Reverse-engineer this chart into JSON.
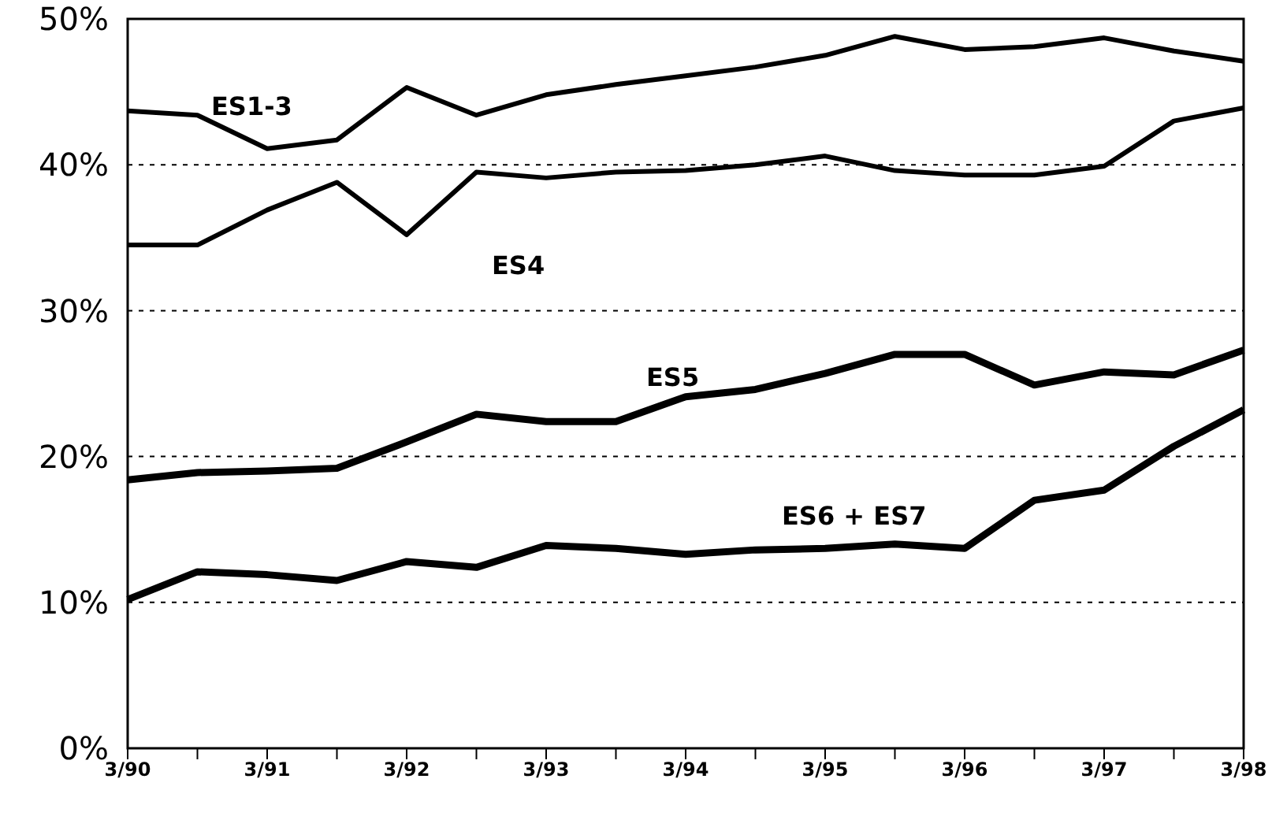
{
  "chart_data": {
    "type": "line",
    "categories": [
      "3/90",
      null,
      "3/91",
      null,
      "3/92",
      null,
      "3/93",
      null,
      "3/94",
      null,
      "3/95",
      null,
      "3/96",
      null,
      "3/97",
      null,
      "3/98"
    ],
    "series": [
      {
        "name": "ES1-3",
        "color": "#000000",
        "values": [
          43.7,
          43.4,
          41.1,
          41.7,
          45.3,
          43.4,
          44.8,
          45.5,
          46.1,
          46.7,
          47.5,
          48.8,
          47.9,
          48.1,
          48.7,
          47.8,
          47.1
        ]
      },
      {
        "name": "ES4",
        "color": "#000000",
        "values": [
          34.5,
          34.5,
          36.9,
          38.8,
          35.2,
          39.5,
          39.1,
          39.5,
          39.6,
          40.0,
          40.6,
          39.6,
          39.3,
          39.3,
          39.9,
          43.0,
          43.9
        ]
      },
      {
        "name": "ES5",
        "color": "#000000",
        "values": [
          18.4,
          18.9,
          19.0,
          19.2,
          21.0,
          22.9,
          22.4,
          22.4,
          24.1,
          24.6,
          25.7,
          27.0,
          27.0,
          24.9,
          25.8,
          25.6,
          27.3
        ]
      },
      {
        "name": "ES6 + ES7",
        "color": "#000000",
        "values": [
          10.2,
          12.1,
          11.9,
          11.5,
          12.8,
          12.4,
          13.9,
          13.7,
          13.3,
          13.6,
          13.7,
          14.0,
          13.7,
          17.0,
          17.7,
          20.7,
          23.2
        ]
      }
    ],
    "ylim": [
      0,
      50
    ],
    "yticks": [
      {
        "value": 0,
        "label": "0%"
      },
      {
        "value": 10,
        "label": "10%"
      },
      {
        "value": 20,
        "label": "20%"
      },
      {
        "value": 30,
        "label": "30%"
      },
      {
        "value": 40,
        "label": "40%"
      },
      {
        "value": 50,
        "label": "50%"
      }
    ],
    "grid": "y",
    "marker": "none",
    "line_style": "solid"
  }
}
